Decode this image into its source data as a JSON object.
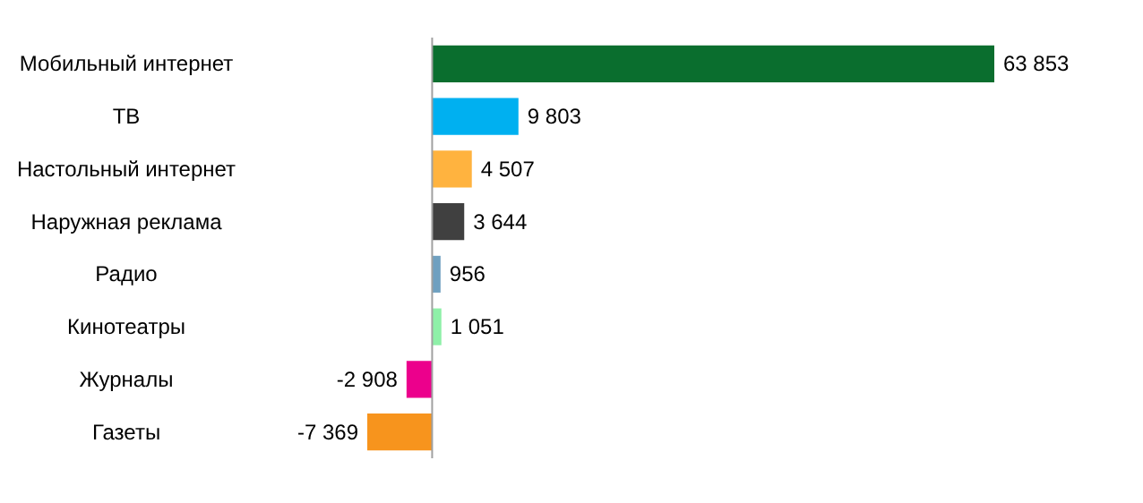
{
  "chart_data": {
    "type": "bar",
    "orientation": "horizontal",
    "data_labels": true,
    "categories": [
      "Мобильный интернет",
      "ТВ",
      "Настольный интернет",
      "Наружная реклама",
      "Радио",
      "Кинотеатры",
      "Журналы",
      "Газеты"
    ],
    "values": [
      63853,
      9803,
      4507,
      3644,
      956,
      1051,
      -2908,
      -7369
    ],
    "value_labels": [
      "63 853",
      "9 803",
      "4 507",
      "3 644",
      "956",
      "1 051",
      "-2 908",
      "-7 369"
    ],
    "colors": [
      "#0a6e2e",
      "#00b0f0",
      "#ffb33f",
      "#404040",
      "#6fa0c0",
      "#8ef0a8",
      "#ec008c",
      "#f7941d"
    ],
    "ref_lines": [
      {
        "axis": "x",
        "value": 0,
        "color": "#a0a0a0"
      }
    ]
  }
}
